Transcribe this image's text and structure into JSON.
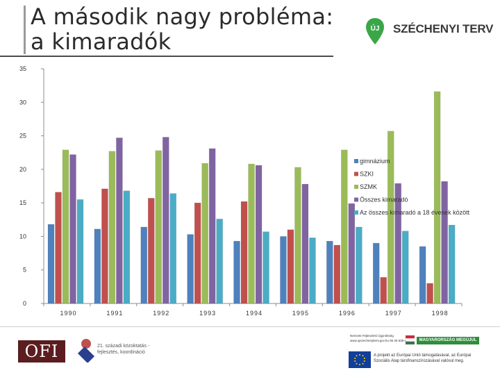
{
  "slide": {
    "title_line1": "A második nagy probléma:",
    "title_line2": "a kimaradók",
    "logo_text": "SZÉCHENYI TERV",
    "logo_badge": "ÚJ",
    "footer_ofi": "OFI",
    "footer_kit": "21. századi közoktatás - fejlesztés, koordináció",
    "footer_contact": "Nemzeti Fejlesztési Ügynökség www.ujszechenyiterv.gov.hu 06 40 638 638",
    "footer_banner": "MAGYARORSZÁG MEGÚJUL",
    "footer_eu": "A projekt az Európai Unió támogatásával, az Európai Szociális Alap társfinanszírozásával valósul meg."
  },
  "chart_data": {
    "type": "bar",
    "title": "",
    "xlabel": "",
    "ylabel": "",
    "ylim": [
      0,
      35
    ],
    "yticks": [
      0,
      5,
      10,
      15,
      20,
      25,
      30,
      35
    ],
    "categories": [
      "1990",
      "1991",
      "1992",
      "1993",
      "1994",
      "1995",
      "1996",
      "1997",
      "1998"
    ],
    "category_labels": [
      "1990",
      "1991",
      "1992",
      "1993",
      "1994",
      "1995",
      "1996",
      "1997",
      "1998"
    ],
    "series": [
      {
        "name": "gimnázium",
        "color": "#4f81bd",
        "values": [
          11.8,
          11.1,
          11.4,
          10.3,
          9.3,
          10.0,
          9.3,
          9.0,
          8.5
        ]
      },
      {
        "name": "SZKI",
        "color": "#c0504d",
        "values": [
          16.6,
          17.1,
          15.7,
          15.0,
          15.2,
          11.0,
          8.7,
          3.9,
          3.0
        ]
      },
      {
        "name": "SZMK",
        "color": "#9bbb59",
        "values": [
          22.9,
          22.7,
          22.8,
          20.9,
          20.8,
          20.3,
          22.9,
          25.7,
          31.6
        ]
      },
      {
        "name": "Összes kimaradó",
        "color": "#8064a2",
        "values": [
          22.2,
          24.7,
          24.8,
          23.1,
          20.6,
          17.8,
          14.9,
          17.9,
          18.2
        ]
      },
      {
        "name": "Az összes kimaradó a 18 évesek között",
        "color": "#4bacc6",
        "values": [
          15.5,
          16.8,
          16.4,
          12.6,
          10.7,
          9.8,
          11.4,
          10.8,
          11.7
        ]
      }
    ],
    "legend_position": "right",
    "grid": false
  }
}
